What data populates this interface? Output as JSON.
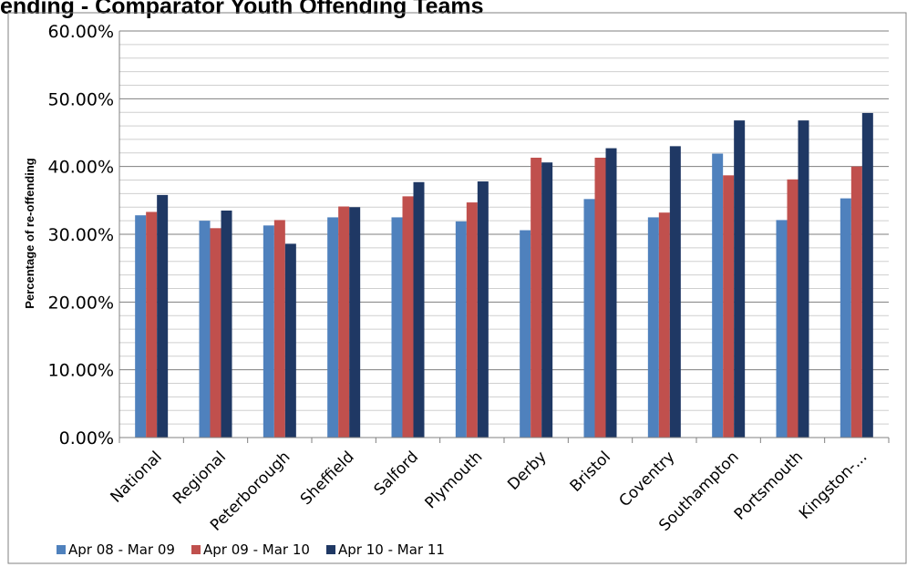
{
  "chart_data": {
    "type": "bar",
    "title": "ending - Comparator Youth Offending Teams",
    "xlabel": "",
    "ylabel": "Percentage of re-offending",
    "ylim": [
      0,
      60
    ],
    "yticks": [
      "0.00%",
      "10.00%",
      "20.00%",
      "30.00%",
      "40.00%",
      "50.00%",
      "60.00%"
    ],
    "grid": true,
    "legend_position": "bottom",
    "categories": [
      "National",
      "Regional",
      "Peterborough",
      "Sheffield",
      "Salford",
      "Plymouth",
      "Derby",
      "Bristol",
      "Coventry",
      "Southampton",
      "Portsmouth",
      "Kingston-..."
    ],
    "series": [
      {
        "name": "Apr 08 - Mar 09",
        "color": "#4f81bd",
        "values": [
          32.8,
          32.0,
          31.3,
          32.5,
          32.5,
          31.9,
          30.6,
          35.2,
          32.5,
          41.9,
          32.1,
          35.3
        ]
      },
      {
        "name": "Apr 09 - Mar 10",
        "color": "#c0504d",
        "values": [
          33.3,
          30.9,
          32.1,
          34.1,
          35.6,
          34.7,
          41.3,
          41.3,
          33.2,
          38.7,
          38.1,
          40.0
        ]
      },
      {
        "name": "Apr 10 - Mar 11",
        "color": "#1f3864",
        "values": [
          35.8,
          33.5,
          28.6,
          34.0,
          37.7,
          37.8,
          40.6,
          42.7,
          43.0,
          46.8,
          46.8,
          47.9
        ]
      }
    ]
  }
}
